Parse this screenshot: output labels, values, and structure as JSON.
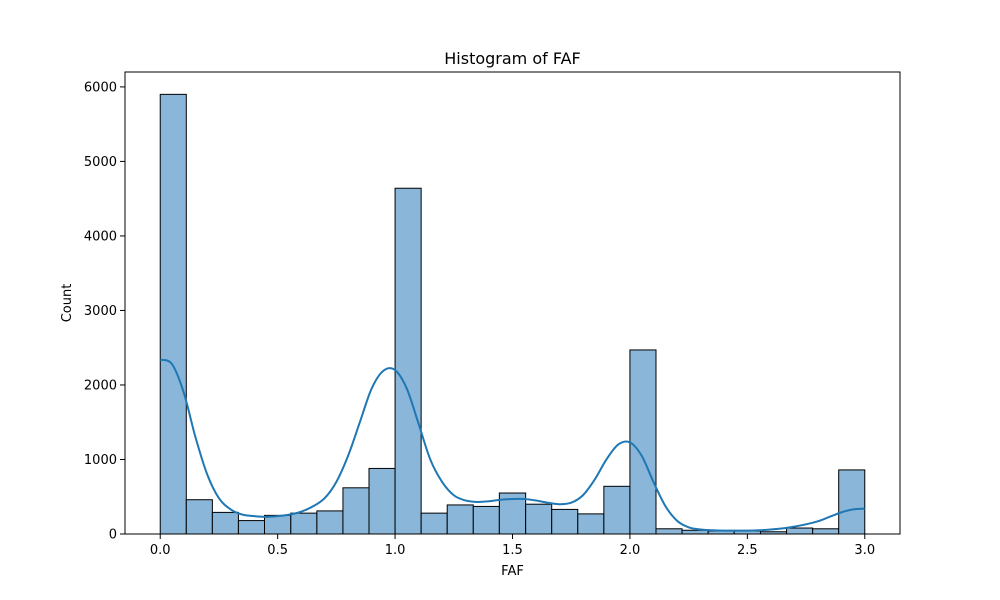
{
  "chart_data": {
    "type": "bar",
    "title": "Histogram of FAF",
    "xlabel": "FAF",
    "ylabel": "Count",
    "xlim": [
      -0.15,
      3.15
    ],
    "ylim": [
      0,
      6200
    ],
    "xticks": [
      0.0,
      0.5,
      1.0,
      1.5,
      2.0,
      2.5,
      3.0
    ],
    "xtick_labels": [
      "0.0",
      "0.5",
      "1.0",
      "1.5",
      "2.0",
      "2.5",
      "3.0"
    ],
    "yticks": [
      0,
      1000,
      2000,
      3000,
      4000,
      5000,
      6000
    ],
    "ytick_labels": [
      "0",
      "1000",
      "2000",
      "3000",
      "4000",
      "5000",
      "6000"
    ],
    "grid": false,
    "bin_edges": [
      0.0,
      0.111,
      0.222,
      0.333,
      0.444,
      0.556,
      0.667,
      0.778,
      0.889,
      1.0,
      1.111,
      1.222,
      1.333,
      1.444,
      1.556,
      1.667,
      1.778,
      1.889,
      2.0,
      2.111,
      2.222,
      2.333,
      2.444,
      2.556,
      2.667,
      2.778,
      2.889,
      3.0
    ],
    "counts": [
      5900,
      460,
      290,
      180,
      250,
      280,
      310,
      620,
      880,
      4640,
      280,
      390,
      370,
      550,
      400,
      330,
      270,
      640,
      2470,
      70,
      50,
      40,
      40,
      30,
      80,
      70,
      860
    ],
    "kde": {
      "x": [
        0.0,
        0.05,
        0.1,
        0.15,
        0.2,
        0.25,
        0.3,
        0.35,
        0.4,
        0.45,
        0.5,
        0.55,
        0.6,
        0.65,
        0.7,
        0.75,
        0.8,
        0.85,
        0.9,
        0.95,
        1.0,
        1.05,
        1.1,
        1.15,
        1.2,
        1.25,
        1.3,
        1.35,
        1.4,
        1.45,
        1.5,
        1.55,
        1.6,
        1.65,
        1.7,
        1.75,
        1.8,
        1.85,
        1.9,
        1.95,
        2.0,
        2.05,
        2.1,
        2.15,
        2.2,
        2.25,
        2.3,
        2.35,
        2.4,
        2.45,
        2.5,
        2.55,
        2.6,
        2.65,
        2.7,
        2.75,
        2.8,
        2.85,
        2.9,
        2.95,
        3.0
      ],
      "y": [
        2340,
        2280,
        1900,
        1300,
        800,
        480,
        330,
        260,
        240,
        230,
        240,
        260,
        300,
        370,
        480,
        700,
        1050,
        1500,
        1950,
        2190,
        2200,
        1950,
        1480,
        1000,
        700,
        520,
        450,
        430,
        440,
        460,
        470,
        470,
        450,
        420,
        400,
        420,
        520,
        730,
        1000,
        1200,
        1230,
        1050,
        700,
        380,
        180,
        90,
        60,
        50,
        45,
        45,
        45,
        50,
        60,
        75,
        100,
        130,
        170,
        230,
        290,
        330,
        340
      ]
    },
    "colors": {
      "bar_fill": "#89b6d9",
      "bar_edge": "#000000",
      "kde_line": "#1f77b4"
    }
  }
}
